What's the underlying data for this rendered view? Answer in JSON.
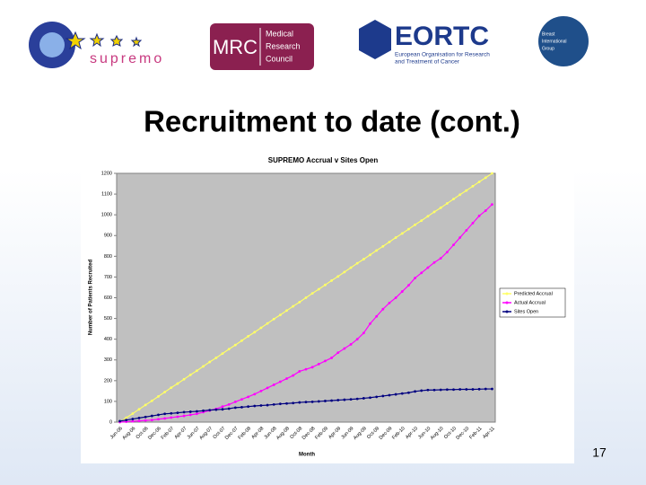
{
  "slide": {
    "title": "Recruitment to date (cont.)",
    "page_number": "17",
    "logos": {
      "supremo": "supremo",
      "mrc": "MRC",
      "mrc_lines": [
        "Medical",
        "Research",
        "Council"
      ],
      "eortc": "EORTC",
      "eortc_lines": [
        "European Organisation for Research",
        "and Treatment of Cancer"
      ],
      "big_lines": [
        "Breast",
        "International",
        "Group"
      ]
    }
  },
  "chart_data": {
    "type": "line",
    "title": "SUPREMO Accrual v Sites Open",
    "x_label": "Month",
    "y_label": "Number of Patients Recruited",
    "categories": [
      "Jun-06",
      null,
      "Aug-06",
      null,
      "Oct-06",
      null,
      "Dec-06",
      null,
      "Feb-07",
      null,
      "Apr-07",
      null,
      "Jun-07",
      null,
      "Aug-07",
      null,
      "Oct-07",
      null,
      "Dec-07",
      null,
      "Feb-08",
      null,
      "Apr-08",
      null,
      "Jun-08",
      null,
      "Aug-08",
      null,
      "Oct-08",
      null,
      "Dec-08",
      null,
      "Feb-09",
      null,
      "Apr-09",
      null,
      "Jun-09",
      null,
      "Aug-09",
      null,
      "Oct-09",
      null,
      "Dec-09",
      null,
      "Feb-10",
      null,
      "Apr-10",
      null,
      "Jun-10",
      null,
      "Aug-10",
      null,
      "Oct-10",
      null,
      "Dec-10",
      null,
      "Feb-11",
      null,
      "Apr-11"
    ],
    "series": [
      {
        "name": "Predicted Accrual",
        "color": "#ffff66",
        "values": [
          0,
          21,
          41,
          62,
          83,
          103,
          124,
          145,
          166,
          186,
          207,
          228,
          248,
          269,
          290,
          310,
          331,
          352,
          372,
          393,
          414,
          434,
          455,
          476,
          497,
          517,
          538,
          559,
          579,
          600,
          621,
          641,
          662,
          683,
          703,
          724,
          745,
          766,
          786,
          807,
          828,
          848,
          869,
          890,
          910,
          931,
          952,
          972,
          993,
          1014,
          1034,
          1055,
          1076,
          1097,
          1117,
          1138,
          1159,
          1179,
          1200
        ]
      },
      {
        "name": "Actual Accrual",
        "color": "#ff00ff",
        "values": [
          0,
          2,
          4,
          6,
          8,
          10,
          14,
          18,
          22,
          26,
          30,
          35,
          40,
          48,
          56,
          64,
          75,
          85,
          98,
          110,
          122,
          135,
          150,
          165,
          180,
          195,
          210,
          225,
          245,
          255,
          265,
          280,
          295,
          310,
          335,
          355,
          375,
          400,
          430,
          475,
          510,
          545,
          575,
          600,
          630,
          660,
          695,
          720,
          745,
          770,
          790,
          820,
          855,
          890,
          925,
          960,
          995,
          1020,
          1050
        ]
      },
      {
        "name": "Sites Open",
        "color": "#000080",
        "values": [
          5,
          10,
          15,
          20,
          25,
          30,
          35,
          40,
          42,
          45,
          48,
          50,
          52,
          55,
          58,
          60,
          62,
          65,
          70,
          72,
          75,
          78,
          80,
          82,
          85,
          88,
          90,
          92,
          95,
          97,
          98,
          100,
          102,
          104,
          106,
          108,
          110,
          112,
          115,
          118,
          122,
          126,
          130,
          134,
          138,
          142,
          148,
          152,
          155,
          155,
          156,
          157,
          157,
          158,
          158,
          158,
          159,
          160,
          160
        ]
      }
    ],
    "ylim": [
      0,
      1200
    ],
    "yticks": [
      0,
      100,
      200,
      300,
      400,
      500,
      600,
      700,
      800,
      900,
      1000,
      1100,
      1200
    ],
    "grid": false,
    "legend": "right",
    "plot_background": "#c0c0c0"
  }
}
